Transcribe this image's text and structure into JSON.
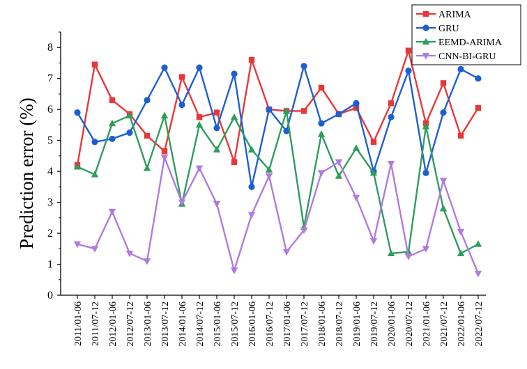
{
  "chart_data": {
    "type": "line",
    "title": "",
    "xlabel": "",
    "ylabel": "Prediction error (%)",
    "ylim": [
      0,
      8.5
    ],
    "yticks": [
      0,
      1,
      2,
      3,
      4,
      5,
      6,
      7,
      8
    ],
    "grid": false,
    "legend_position": "top-right",
    "categories": [
      "2011/01-06",
      "2011/07-12",
      "2012/01-06",
      "2012/07-12",
      "2013/01-06",
      "2013/07-12",
      "2014/01-06",
      "2014/07-12",
      "2015/01-06",
      "2015/07-12",
      "2016/01-06",
      "2016/07-12",
      "2017/01-06",
      "2017/07-12",
      "2018/01-06",
      "2018/07-12",
      "2019/01-06",
      "2019/07-12",
      "2020/01-06",
      "2020/07-12",
      "2021/01-06",
      "2021/07-12",
      "2022/01-06",
      "2022/07-12"
    ],
    "series": [
      {
        "name": "ARIMA",
        "color": "#e8373a",
        "marker": "square",
        "values": [
          4.2,
          7.45,
          6.3,
          5.85,
          5.15,
          4.65,
          7.05,
          5.75,
          5.9,
          4.3,
          7.6,
          6.0,
          5.95,
          5.95,
          6.7,
          5.85,
          6.05,
          4.95,
          6.2,
          7.9,
          5.55,
          6.85,
          5.15,
          6.05
        ]
      },
      {
        "name": "GRU",
        "color": "#1e5fd0",
        "marker": "circle",
        "values": [
          5.9,
          4.95,
          5.05,
          5.25,
          6.3,
          7.35,
          6.15,
          7.35,
          5.4,
          7.15,
          3.5,
          6.0,
          5.3,
          7.4,
          5.55,
          5.85,
          6.2,
          4.0,
          5.75,
          7.25,
          3.95,
          5.9,
          7.3,
          7.0
        ]
      },
      {
        "name": "EEMD-ARIMA",
        "color": "#2e9e5b",
        "marker": "triangle-up",
        "values": [
          4.15,
          3.9,
          5.55,
          5.8,
          4.1,
          5.8,
          2.95,
          5.5,
          4.7,
          5.75,
          4.7,
          4.05,
          5.95,
          2.2,
          5.2,
          3.85,
          4.75,
          3.95,
          1.35,
          1.4,
          5.45,
          2.8,
          1.35,
          1.65
        ]
      },
      {
        "name": "CNN-BI-GRU",
        "color": "#b07be0",
        "marker": "triangle-down",
        "values": [
          1.65,
          1.5,
          2.7,
          1.35,
          1.1,
          4.45,
          3.0,
          4.1,
          2.95,
          0.8,
          2.6,
          3.85,
          1.4,
          2.1,
          3.95,
          4.3,
          3.15,
          1.75,
          4.25,
          1.25,
          1.5,
          3.7,
          2.05,
          0.7
        ]
      }
    ]
  }
}
